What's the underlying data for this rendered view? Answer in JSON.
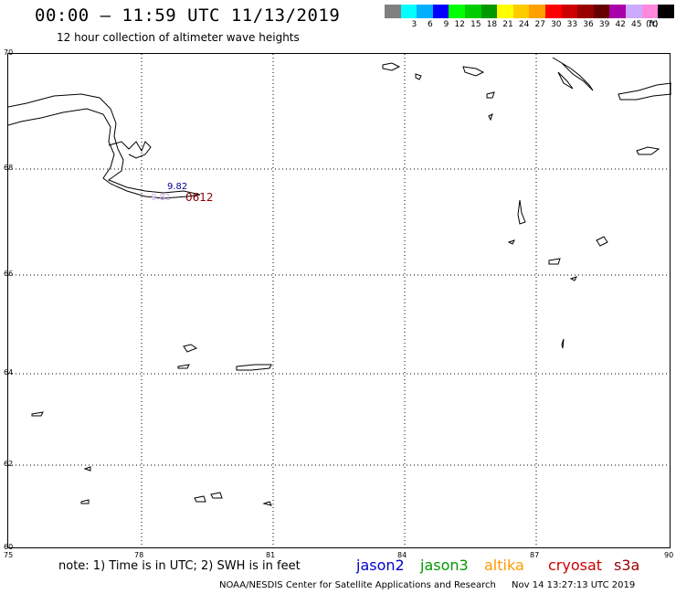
{
  "header": {
    "title": "00:00 – 11:59 UTC 11/13/2019",
    "subtitle": "12 hour collection of altimeter wave heights"
  },
  "legend": {
    "unit": "(ft)",
    "items": [
      {
        "label": "",
        "color": "#808080"
      },
      {
        "label": "3",
        "color": "#00ffff"
      },
      {
        "label": "6",
        "color": "#00b0ff"
      },
      {
        "label": "9",
        "color": "#0000ff"
      },
      {
        "label": "12",
        "color": "#00ff00"
      },
      {
        "label": "15",
        "color": "#00cc00"
      },
      {
        "label": "18",
        "color": "#009900"
      },
      {
        "label": "21",
        "color": "#ffff00"
      },
      {
        "label": "24",
        "color": "#ffcc00"
      },
      {
        "label": "27",
        "color": "#ffa000"
      },
      {
        "label": "30",
        "color": "#ff0000"
      },
      {
        "label": "33",
        "color": "#cc0000"
      },
      {
        "label": "36",
        "color": "#990000"
      },
      {
        "label": "39",
        "color": "#660000"
      },
      {
        "label": "42",
        "color": "#aa00aa"
      },
      {
        "label": "45",
        "color": "#ccaaff"
      },
      {
        "label": "70",
        "color": "#ff88dd"
      },
      {
        "label": "",
        "color": "#000000"
      }
    ]
  },
  "axes": {
    "lat_labels": [
      "70",
      "68",
      "66",
      "64",
      "62",
      "60"
    ],
    "lon_labels": [
      "75",
      "78",
      "81",
      "84",
      "87",
      "90"
    ]
  },
  "annotations": {
    "wave_value_1": "9.82",
    "wave_value_2": "9.81",
    "time_label": "0612"
  },
  "footer": {
    "note": "note: 1) Time is in UTC; 2) SWH is in feet",
    "satellites": [
      {
        "name": "jason2",
        "color": "#0000cc"
      },
      {
        "name": "jason3",
        "color": "#009900"
      },
      {
        "name": "altika",
        "color": "#ff9900"
      },
      {
        "name": "cryosat",
        "color": "#cc0000"
      },
      {
        "name": "s3a",
        "color": "#990000"
      }
    ],
    "credit": "NOAA/NESDIS Center for Satellite Applications and Research",
    "timestamp": "Nov 14 13:27:13 UTC 2019"
  }
}
